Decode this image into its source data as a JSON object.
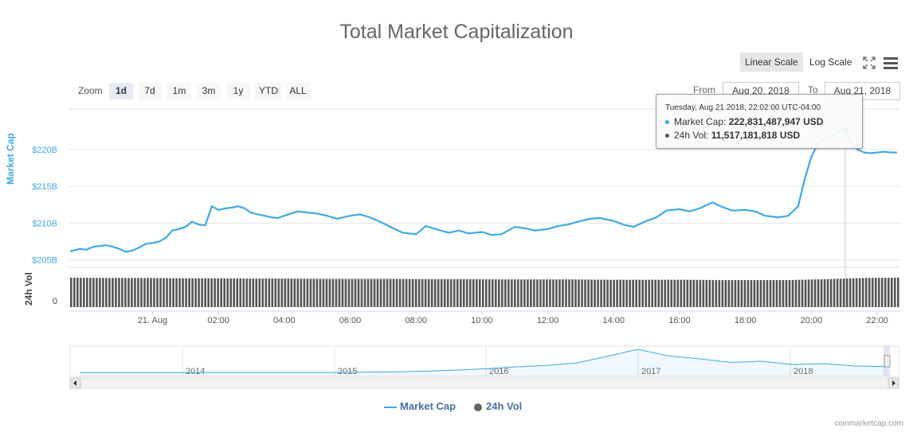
{
  "title": "Total Market Capitalization",
  "scale": {
    "linear_label": "Linear Scale",
    "log_label": "Log Scale",
    "active": "linear"
  },
  "toolbar_icons": [
    "fullscreen-icon",
    "menu-icon"
  ],
  "zoom": {
    "label": "Zoom",
    "buttons": [
      "1d",
      "7d",
      "1m",
      "3m",
      "1y",
      "YTD",
      "ALL"
    ],
    "active": "1d"
  },
  "range": {
    "from_label": "From",
    "from_value": "Aug 20, 2018",
    "to_label": "To",
    "to_value": "Aug 21, 2018"
  },
  "tooltip": {
    "date": "Tuesday, Aug 21 2018, 22:02:00 UTC-04:00",
    "cap_label": "Market Cap: ",
    "cap_value": "222,831,487,947 USD",
    "vol_label": "24h Vol: ",
    "vol_value": "11,517,181,818 USD"
  },
  "legend": {
    "market_cap": "Market Cap",
    "volume": "24h Vol"
  },
  "credit": "coinmarketcap.com",
  "colors": {
    "market_cap": "#3fa9e3",
    "volume": "#555555",
    "navigator": "#3fa9e3"
  },
  "chart_data": {
    "type": "line",
    "title": "Total Market Capitalization",
    "x_unit": "hours since Aug 20, 2018 21:00",
    "x_tick_labels": [
      "21. Aug",
      "02:00",
      "04:00",
      "06:00",
      "08:00",
      "10:00",
      "12:00",
      "14:00",
      "16:00",
      "18:00",
      "20:00",
      "22:00"
    ],
    "x_ticks": [
      3,
      5,
      7,
      9,
      11,
      13,
      15,
      17,
      19,
      21,
      23,
      25
    ],
    "xlim": [
      0.45,
      25.7
    ],
    "ylabel": "Market Cap",
    "y_tick_labels": [
      "$205B",
      "$210B",
      "$215B",
      "$220B"
    ],
    "y_ticks": [
      205,
      210,
      215,
      220
    ],
    "ylim": [
      204,
      225.5
    ],
    "series": [
      {
        "name": "Market Cap",
        "unit": "billion USD",
        "x": [
          0.5,
          0.8,
          1.0,
          1.2,
          1.4,
          1.6,
          1.8,
          2.0,
          2.2,
          2.4,
          2.6,
          2.8,
          3.0,
          3.2,
          3.4,
          3.6,
          3.8,
          4.0,
          4.2,
          4.4,
          4.6,
          4.8,
          5.0,
          5.2,
          5.4,
          5.6,
          5.8,
          6.0,
          6.2,
          6.4,
          6.6,
          6.8,
          7.0,
          7.2,
          7.4,
          7.6,
          7.8,
          8.0,
          8.3,
          8.6,
          9.0,
          9.3,
          9.6,
          10.0,
          10.3,
          10.6,
          11.0,
          11.3,
          11.6,
          12.0,
          12.3,
          12.6,
          13.0,
          13.3,
          13.6,
          14.0,
          14.3,
          14.6,
          15.0,
          15.3,
          15.6,
          16.0,
          16.3,
          16.6,
          17.0,
          17.3,
          17.6,
          18.0,
          18.3,
          18.6,
          19.0,
          19.3,
          19.6,
          20.0,
          20.3,
          20.6,
          21.0,
          21.3,
          21.6,
          22.0,
          22.3,
          22.6,
          22.8,
          23.0,
          23.2,
          23.4,
          23.6,
          23.8,
          24.0,
          24.2,
          24.4,
          24.6,
          24.8,
          25.0,
          25.2,
          25.4,
          25.6
        ],
        "y": [
          206.2,
          206.5,
          206.4,
          206.8,
          206.9,
          207.0,
          206.8,
          206.5,
          206.1,
          206.3,
          206.7,
          207.2,
          207.3,
          207.5,
          208.0,
          209.0,
          209.2,
          209.5,
          210.2,
          209.8,
          209.7,
          212.3,
          211.8,
          212.0,
          212.1,
          212.3,
          212.0,
          211.4,
          211.2,
          211.0,
          210.8,
          210.7,
          211.0,
          211.3,
          211.6,
          211.5,
          211.4,
          211.3,
          211.0,
          210.6,
          211.0,
          211.2,
          210.8,
          210.0,
          209.3,
          208.7,
          208.5,
          209.6,
          209.2,
          208.7,
          209.0,
          208.6,
          208.8,
          208.4,
          208.5,
          209.5,
          209.3,
          209.0,
          209.2,
          209.6,
          209.8,
          210.3,
          210.6,
          210.7,
          210.3,
          209.8,
          209.5,
          210.3,
          210.8,
          211.7,
          211.9,
          211.6,
          212.0,
          212.8,
          212.2,
          211.7,
          211.8,
          211.6,
          211.0,
          210.8,
          211.0,
          212.3,
          216.0,
          219.0,
          220.8,
          221.6,
          221.8,
          222.4,
          222.8,
          221.2,
          220.0,
          219.6,
          219.5,
          219.6,
          219.7,
          219.6,
          219.6
        ],
        "color": "#3fa9e3"
      },
      {
        "name": "24h Vol",
        "unit": "relative bar height",
        "note": "nearly constant volume bars, slight rise after 20:00",
        "values_relative": [
          1.0,
          0.99,
          0.99,
          0.98,
          0.98,
          0.97,
          0.97,
          0.96,
          0.96,
          0.96,
          0.95,
          0.95,
          0.94,
          0.94,
          0.94,
          0.93,
          0.93,
          0.93,
          0.92,
          0.92,
          0.92,
          0.95,
          0.99,
          1.0
        ],
        "color": "#555555"
      }
    ],
    "volume_axis": {
      "label": "24h Vol",
      "tick_labels": [
        "0"
      ]
    },
    "navigator": {
      "tick_labels": [
        "2014",
        "2015",
        "2016",
        "2017",
        "2018"
      ],
      "series_relative": [
        0.02,
        0.02,
        0.02,
        0.02,
        0.03,
        0.03,
        0.03,
        0.03,
        0.03,
        0.04,
        0.05,
        0.08,
        0.12,
        0.18,
        0.26,
        0.32,
        0.42,
        0.7,
        1.0,
        0.72,
        0.6,
        0.45,
        0.5,
        0.36,
        0.4,
        0.3,
        0.28
      ]
    },
    "tooltip_point": {
      "x": 24.03,
      "y": 222.83
    },
    "grid": true,
    "legend_position": "bottom-center"
  }
}
